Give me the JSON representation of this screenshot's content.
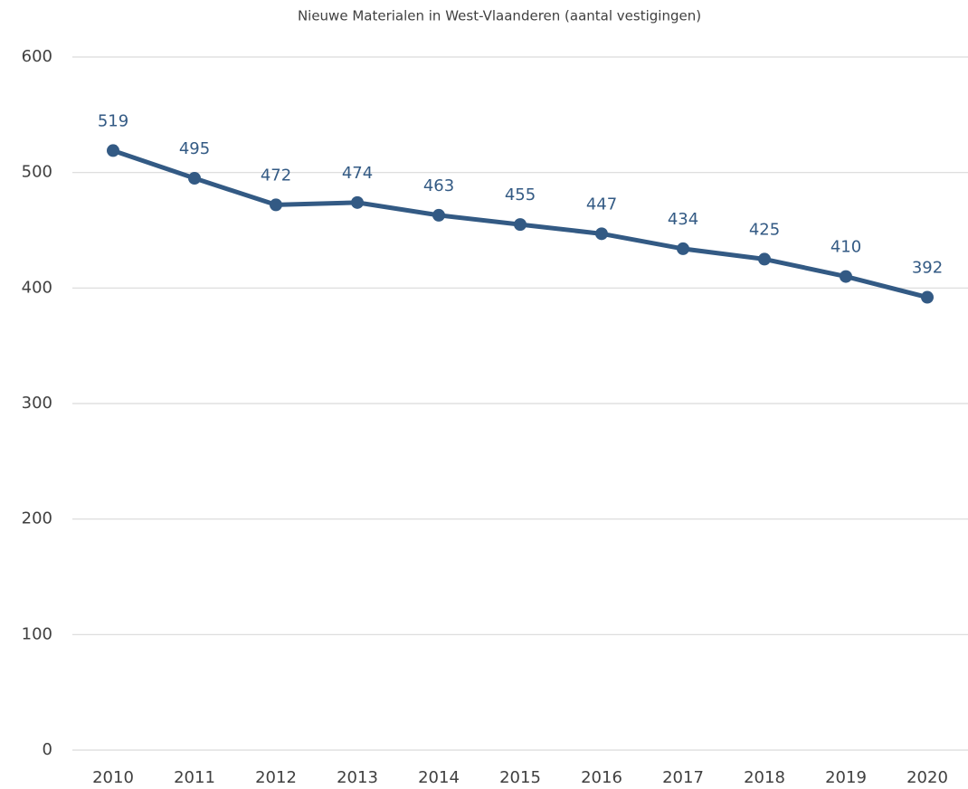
{
  "chart_data": {
    "type": "line",
    "title": "Nieuwe Materialen in West-Vlaanderen (aantal vestigingen)",
    "categories": [
      "2010",
      "2011",
      "2012",
      "2013",
      "2014",
      "2015",
      "2016",
      "2017",
      "2018",
      "2019",
      "2020"
    ],
    "series": [
      {
        "name": "Nieuwe Materialen",
        "color": "#335a84",
        "values": [
          519,
          495,
          472,
          474,
          463,
          455,
          447,
          434,
          425,
          410,
          392
        ]
      }
    ],
    "ylim": [
      0,
      600
    ],
    "yticks": [
      0,
      100,
      200,
      300,
      400,
      500,
      600
    ],
    "grid": true,
    "legend": false
  }
}
